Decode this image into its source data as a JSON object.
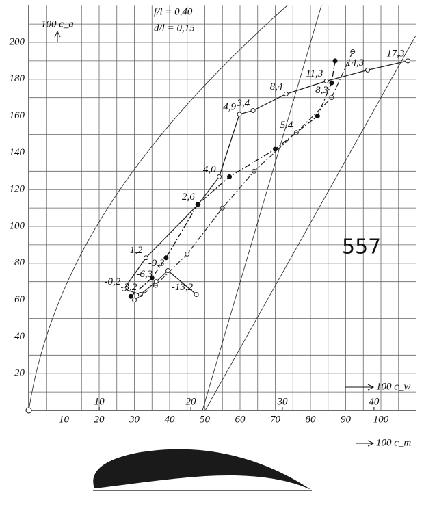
{
  "chart_data": {
    "type": "line",
    "annotations": [
      "f/l = 0,40",
      "d/l = 0,15"
    ],
    "figure_number": "557",
    "y_label": "100 c_a",
    "x_label": "100 c_m",
    "x2_label": "100 c_w",
    "xlim": [
      0,
      110
    ],
    "xticks": [
      10,
      20,
      30,
      40,
      50,
      60,
      70,
      80,
      90,
      100
    ],
    "x2lim": [
      2.3,
      44.6
    ],
    "x2ticks": [
      10,
      20,
      30,
      40
    ],
    "ylim": [
      0,
      220
    ],
    "yticks": [
      20,
      40,
      60,
      80,
      100,
      120,
      140,
      160,
      180,
      200
    ],
    "grid": true,
    "series": [
      {
        "color": "#222",
        "marker": "open-circle",
        "dash": "solid",
        "axis": "x2",
        "x": [
          20.6,
          17.5,
          16.2,
          14.5,
          12.7,
          15.1,
          20.8,
          23.1,
          25.3,
          26.8,
          30.4,
          34.8,
          39.3,
          43.7
        ],
        "values": [
          63,
          76,
          70,
          63,
          66,
          83,
          112,
          127,
          161,
          163,
          172,
          179,
          185,
          190
        ],
        "point_labels": [
          "-13,2",
          "-9,3",
          "-6,3",
          "-3,2",
          "-0,2",
          "1,2",
          "2,6",
          "4,0",
          "4,9",
          "3,4",
          "8,4",
          "11,3",
          "14,3",
          "17,3"
        ]
      },
      {
        "color": "#111",
        "marker": "filled-circle",
        "dash": "dash-dot",
        "x": [
          29,
          35,
          39,
          48,
          57,
          70,
          82,
          86,
          87
        ],
        "values": [
          62,
          72,
          83,
          112,
          127,
          142,
          160,
          178,
          190
        ]
      },
      {
        "color": "#333",
        "marker": "crossed-circle",
        "dash": "dash-dot",
        "x": [
          30,
          36,
          45,
          55,
          64,
          76,
          86,
          92
        ],
        "values": [
          60,
          68,
          85,
          110,
          130,
          151,
          170,
          195
        ],
        "point_labels": [
          null,
          null,
          null,
          null,
          null,
          "5,4",
          "8,3",
          null
        ]
      }
    ]
  }
}
